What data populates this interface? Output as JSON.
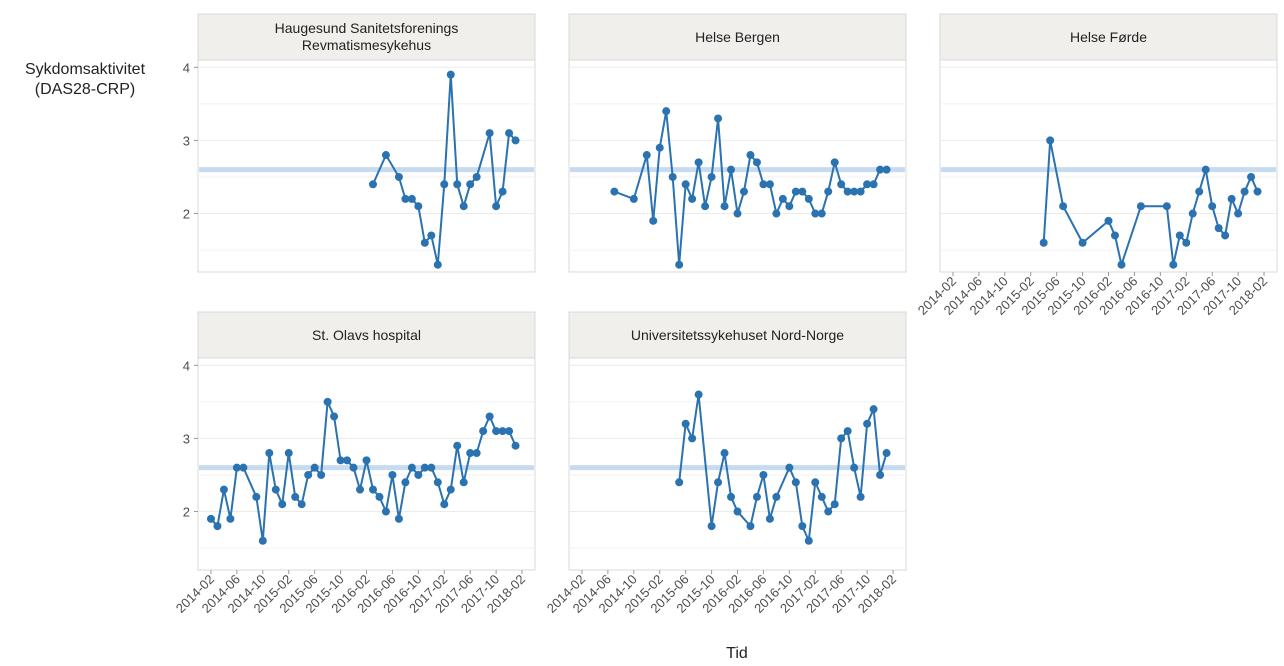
{
  "ylabel": "Sykdomsaktivitet (DAS28-CRP)",
  "xlabel": "Tid",
  "chart_data": [
    {
      "type": "line",
      "title": "Haugesund Sanitetsforenings Revmatismesykehus",
      "color": "#2b72b0",
      "reference": 2.6,
      "reference_color": "#c6dbef",
      "x": [
        "2016-03",
        "2016-05",
        "2016-07",
        "2016-08",
        "2016-09",
        "2016-10",
        "2016-11",
        "2016-12",
        "2017-01",
        "2017-02",
        "2017-03",
        "2017-04",
        "2017-05",
        "2017-06",
        "2017-07",
        "2017-09",
        "2017-10",
        "2017-11",
        "2017-12",
        "2018-01"
      ],
      "values": [
        2.4,
        2.8,
        2.5,
        2.2,
        2.2,
        2.1,
        1.6,
        1.7,
        1.3,
        2.4,
        3.9,
        2.4,
        2.1,
        2.4,
        2.5,
        3.1,
        2.1,
        2.3,
        3.1,
        3.0
      ],
      "xlim": [
        "2013-12",
        "2018-04"
      ],
      "xticks": [
        "2014-02",
        "2014-06",
        "2014-10",
        "2015-02",
        "2015-06",
        "2015-10",
        "2016-02",
        "2016-06",
        "2016-10",
        "2017-02",
        "2017-06",
        "2017-10",
        "2018-02"
      ],
      "ylim": [
        1.2,
        4.1
      ],
      "yticks": [
        2,
        3,
        4
      ],
      "grid": true,
      "x_tick_labels": false,
      "y_tick_labels": true
    },
    {
      "type": "line",
      "title": "Helse Bergen",
      "color": "#2b72b0",
      "reference": 2.6,
      "reference_color": "#c6dbef",
      "x": [
        "2014-07",
        "2014-10",
        "2014-12",
        "2015-01",
        "2015-02",
        "2015-03",
        "2015-04",
        "2015-05",
        "2015-06",
        "2015-07",
        "2015-08",
        "2015-09",
        "2015-10",
        "2015-11",
        "2015-12",
        "2016-01",
        "2016-02",
        "2016-03",
        "2016-04",
        "2016-05",
        "2016-06",
        "2016-07",
        "2016-08",
        "2016-09",
        "2016-10",
        "2016-11",
        "2016-12",
        "2017-01",
        "2017-02",
        "2017-03",
        "2017-04",
        "2017-05",
        "2017-06",
        "2017-07",
        "2017-08",
        "2017-09",
        "2017-10",
        "2017-11",
        "2017-12",
        "2018-01"
      ],
      "values": [
        2.3,
        2.2,
        2.8,
        1.9,
        2.9,
        3.4,
        2.5,
        1.3,
        2.4,
        2.2,
        2.7,
        2.1,
        2.5,
        3.3,
        2.1,
        2.6,
        2.0,
        2.3,
        2.8,
        2.7,
        2.4,
        2.4,
        2.0,
        2.2,
        2.1,
        2.3,
        2.3,
        2.2,
        2.0,
        2.0,
        2.3,
        2.7,
        2.4,
        2.3,
        2.3,
        2.3,
        2.4,
        2.4,
        2.6,
        2.6
      ],
      "xlim": [
        "2013-12",
        "2018-04"
      ],
      "xticks": [
        "2014-02",
        "2014-06",
        "2014-10",
        "2015-02",
        "2015-06",
        "2015-10",
        "2016-02",
        "2016-06",
        "2016-10",
        "2017-02",
        "2017-06",
        "2017-10",
        "2018-02"
      ],
      "ylim": [
        1.2,
        4.1
      ],
      "yticks": [
        2,
        3,
        4
      ],
      "grid": true,
      "x_tick_labels": false,
      "y_tick_labels": false
    },
    {
      "type": "line",
      "title": "Helse Førde",
      "color": "#2b72b0",
      "reference": 2.6,
      "reference_color": "#c6dbef",
      "x": [
        "2015-04",
        "2015-05",
        "2015-07",
        "2015-10",
        "2016-02",
        "2016-03",
        "2016-04",
        "2016-07",
        "2016-11",
        "2016-12",
        "2017-01",
        "2017-02",
        "2017-03",
        "2017-04",
        "2017-05",
        "2017-06",
        "2017-07",
        "2017-08",
        "2017-09",
        "2017-10",
        "2017-11",
        "2017-12",
        "2018-01"
      ],
      "values": [
        1.6,
        3.0,
        2.1,
        1.6,
        1.9,
        1.7,
        1.3,
        2.1,
        2.1,
        1.3,
        1.7,
        1.6,
        2.0,
        2.3,
        2.6,
        2.1,
        1.8,
        1.7,
        2.2,
        2.0,
        2.3,
        2.5,
        2.3
      ],
      "xlim": [
        "2013-12",
        "2018-04"
      ],
      "xticks": [
        "2014-02",
        "2014-06",
        "2014-10",
        "2015-02",
        "2015-06",
        "2015-10",
        "2016-02",
        "2016-06",
        "2016-10",
        "2017-02",
        "2017-06",
        "2017-10",
        "2018-02"
      ],
      "ylim": [
        1.2,
        4.1
      ],
      "yticks": [
        2,
        3,
        4
      ],
      "grid": true,
      "x_tick_labels": true,
      "y_tick_labels": false
    },
    {
      "type": "line",
      "title": "St. Olavs hospital",
      "color": "#2b72b0",
      "reference": 2.6,
      "reference_color": "#c6dbef",
      "x": [
        "2014-02",
        "2014-03",
        "2014-04",
        "2014-05",
        "2014-06",
        "2014-07",
        "2014-09",
        "2014-10",
        "2014-11",
        "2014-12",
        "2015-01",
        "2015-02",
        "2015-03",
        "2015-04",
        "2015-05",
        "2015-06",
        "2015-07",
        "2015-08",
        "2015-09",
        "2015-10",
        "2015-11",
        "2015-12",
        "2016-01",
        "2016-02",
        "2016-03",
        "2016-04",
        "2016-05",
        "2016-06",
        "2016-07",
        "2016-08",
        "2016-09",
        "2016-10",
        "2016-11",
        "2016-12",
        "2017-01",
        "2017-02",
        "2017-03",
        "2017-04",
        "2017-05",
        "2017-06",
        "2017-07",
        "2017-08",
        "2017-09",
        "2017-10",
        "2017-11",
        "2017-12",
        "2018-01"
      ],
      "values": [
        1.9,
        1.8,
        2.3,
        1.9,
        2.6,
        2.6,
        2.2,
        1.6,
        2.8,
        2.3,
        2.1,
        2.8,
        2.2,
        2.1,
        2.5,
        2.6,
        2.5,
        3.5,
        3.3,
        2.7,
        2.7,
        2.6,
        2.3,
        2.7,
        2.3,
        2.2,
        2.0,
        2.5,
        1.9,
        2.4,
        2.6,
        2.5,
        2.6,
        2.6,
        2.4,
        2.1,
        2.3,
        2.9,
        2.4,
        2.8,
        2.8,
        3.1,
        3.3,
        3.1,
        3.1,
        3.1,
        2.9
      ],
      "xlim": [
        "2013-12",
        "2018-04"
      ],
      "xticks": [
        "2014-02",
        "2014-06",
        "2014-10",
        "2015-02",
        "2015-06",
        "2015-10",
        "2016-02",
        "2016-06",
        "2016-10",
        "2017-02",
        "2017-06",
        "2017-10",
        "2018-02"
      ],
      "ylim": [
        1.2,
        4.1
      ],
      "yticks": [
        2,
        3,
        4
      ],
      "grid": true,
      "x_tick_labels": true,
      "y_tick_labels": true
    },
    {
      "type": "line",
      "title": "Universitetssykehuset Nord-Norge",
      "color": "#2b72b0",
      "reference": 2.6,
      "reference_color": "#c6dbef",
      "x": [
        "2015-05",
        "2015-06",
        "2015-07",
        "2015-08",
        "2015-10",
        "2015-11",
        "2015-12",
        "2016-01",
        "2016-02",
        "2016-04",
        "2016-05",
        "2016-06",
        "2016-07",
        "2016-08",
        "2016-10",
        "2016-11",
        "2016-12",
        "2017-01",
        "2017-02",
        "2017-03",
        "2017-04",
        "2017-05",
        "2017-06",
        "2017-07",
        "2017-08",
        "2017-09",
        "2017-10",
        "2017-11",
        "2017-12",
        "2018-01"
      ],
      "values": [
        2.4,
        3.2,
        3.0,
        3.6,
        1.8,
        2.4,
        2.8,
        2.2,
        2.0,
        1.8,
        2.2,
        2.5,
        1.9,
        2.2,
        2.6,
        2.4,
        1.8,
        1.6,
        2.4,
        2.2,
        2.0,
        2.1,
        3.0,
        3.1,
        2.6,
        2.2,
        3.2,
        3.4,
        2.5,
        2.8
      ],
      "xlim": [
        "2013-12",
        "2018-04"
      ],
      "xticks": [
        "2014-02",
        "2014-06",
        "2014-10",
        "2015-02",
        "2015-06",
        "2015-10",
        "2016-02",
        "2016-06",
        "2016-10",
        "2017-02",
        "2017-06",
        "2017-10",
        "2018-02"
      ],
      "ylim": [
        1.2,
        4.1
      ],
      "yticks": [
        2,
        3,
        4
      ],
      "grid": true,
      "x_tick_labels": true,
      "y_tick_labels": false
    }
  ]
}
